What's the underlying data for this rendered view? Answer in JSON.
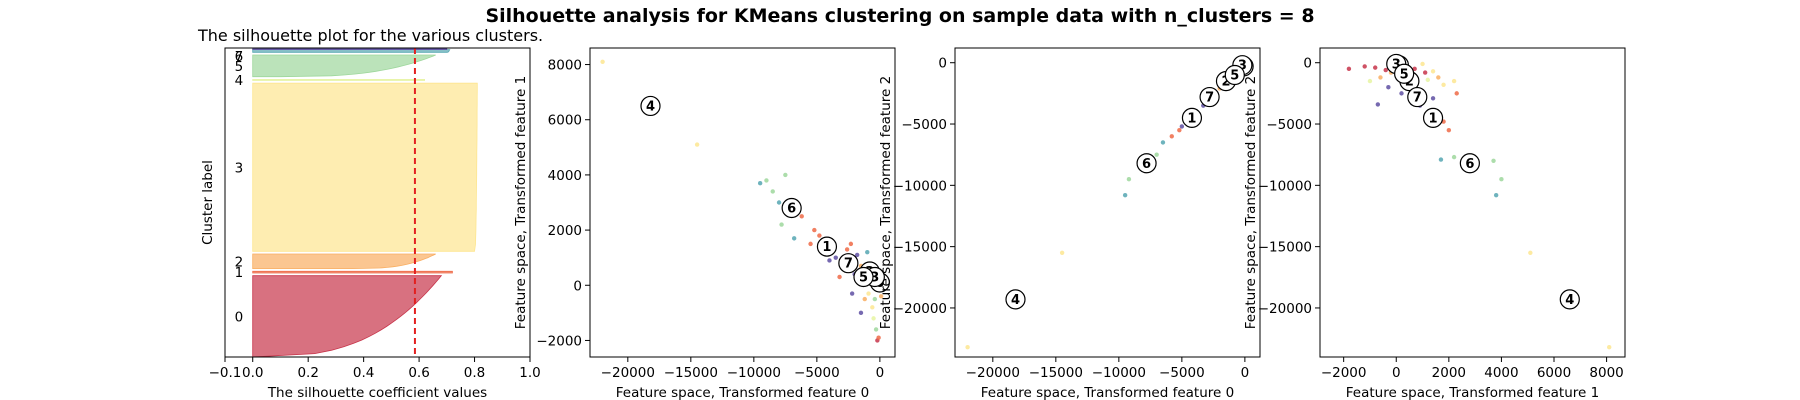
{
  "figure": {
    "suptitle": "Silhouette analysis for KMeans clustering on sample data with n_clusters = 8"
  },
  "colors": {
    "c0": "#c7344a",
    "c1": "#ee6a47",
    "c2": "#f9ae62",
    "c3": "#fde690",
    "c4": "#e6f4a2",
    "c5": "#9ed79c",
    "c6": "#55a6b1",
    "c7": "#5e4fa2",
    "avg_line": "#e32020"
  },
  "chart_data": [
    {
      "type": "area",
      "name": "silhouette",
      "title": "The silhouette plot for the various clusters.",
      "xlabel": "The silhouette coefficient values",
      "ylabel": "Cluster label",
      "xlim": [
        -0.1,
        1.0
      ],
      "ylim": [
        0,
        570
      ],
      "x_ticks": [
        "−0.1",
        "0.0",
        "0.2",
        "0.4",
        "0.6",
        "0.8",
        "1.0"
      ],
      "x_tick_values": [
        -0.1,
        0.0,
        0.2,
        0.4,
        0.6,
        0.8,
        1.0
      ],
      "average_silhouette": 0.585,
      "clusters": [
        {
          "label": "0",
          "y_lo": 0,
          "y_hi": 150,
          "max": 0.68,
          "min": 0.0
        },
        {
          "label": "1",
          "y_lo": 155,
          "y_hi": 158,
          "max": 0.72,
          "min": 0.72
        },
        {
          "label": "2",
          "y_lo": 163,
          "y_hi": 190,
          "max": 0.66,
          "min": 0.36
        },
        {
          "label": "3",
          "y_lo": 195,
          "y_hi": 505,
          "max": 0.81,
          "min": 0.8
        },
        {
          "label": "4",
          "y_lo": 510,
          "y_hi": 512,
          "max": 0.62,
          "min": 0.62
        },
        {
          "label": "5",
          "y_lo": 517,
          "y_hi": 557,
          "max": 0.66,
          "min": 0.1
        },
        {
          "label": "6",
          "y_lo": 562,
          "y_hi": 567,
          "max": 0.71,
          "min": 0.7
        },
        {
          "label": "7",
          "y_lo": 567,
          "y_hi": 569,
          "max": 0.7,
          "min": 0.7
        }
      ]
    },
    {
      "type": "scatter",
      "name": "feature0-vs-feature1",
      "xlabel": "Feature space, Transformed feature 0",
      "ylabel": "Feature space, Transformed feature 1",
      "xlim": [
        -23000,
        1200
      ],
      "ylim": [
        -2600,
        8600
      ],
      "x_ticks": [
        "−20000",
        "−15000",
        "−10000",
        "−5000",
        "0"
      ],
      "x_tick_values": [
        -20000,
        -15000,
        -10000,
        -5000,
        0
      ],
      "y_ticks": [
        "−2000",
        "0",
        "2000",
        "4000",
        "6000",
        "8000"
      ],
      "y_tick_values": [
        -2000,
        0,
        2000,
        4000,
        6000,
        8000
      ],
      "centers": [
        {
          "label": "0",
          "x": 0,
          "y": 100
        },
        {
          "label": "1",
          "x": -4200,
          "y": 1400
        },
        {
          "label": "2",
          "x": -800,
          "y": 500
        },
        {
          "label": "3",
          "x": -400,
          "y": 300
        },
        {
          "label": "4",
          "x": -18200,
          "y": 6500
        },
        {
          "label": "5",
          "x": -1300,
          "y": 300
        },
        {
          "label": "6",
          "x": -7000,
          "y": 2800
        },
        {
          "label": "7",
          "x": -2500,
          "y": 800
        }
      ],
      "points": [
        {
          "x": -22000,
          "y": 8100,
          "c": 3
        },
        {
          "x": -14500,
          "y": 5100,
          "c": 3
        },
        {
          "x": -9000,
          "y": 3800,
          "c": 5
        },
        {
          "x": -9500,
          "y": 3700,
          "c": 6
        },
        {
          "x": -7500,
          "y": 4000,
          "c": 5
        },
        {
          "x": -8500,
          "y": 3400,
          "c": 5
        },
        {
          "x": -8000,
          "y": 3000,
          "c": 6
        },
        {
          "x": -7800,
          "y": 2200,
          "c": 5
        },
        {
          "x": -6200,
          "y": 2500,
          "c": 1
        },
        {
          "x": -6800,
          "y": 1700,
          "c": 6
        },
        {
          "x": -5200,
          "y": 2000,
          "c": 1
        },
        {
          "x": -4800,
          "y": 1800,
          "c": 1
        },
        {
          "x": -4400,
          "y": 1200,
          "c": 1
        },
        {
          "x": -5500,
          "y": 1500,
          "c": 1
        },
        {
          "x": -3800,
          "y": 1600,
          "c": 7
        },
        {
          "x": -3500,
          "y": 1000,
          "c": 7
        },
        {
          "x": -3000,
          "y": 900,
          "c": 7
        },
        {
          "x": -2800,
          "y": 600,
          "c": 7
        },
        {
          "x": -2000,
          "y": 400,
          "c": 7
        },
        {
          "x": -1800,
          "y": 1100,
          "c": 7
        },
        {
          "x": -1500,
          "y": 700,
          "c": 2
        },
        {
          "x": -1100,
          "y": 200,
          "c": 2
        },
        {
          "x": -900,
          "y": -300,
          "c": 3
        },
        {
          "x": -600,
          "y": -800,
          "c": 3
        },
        {
          "x": -500,
          "y": -1200,
          "c": 4
        },
        {
          "x": -300,
          "y": -1600,
          "c": 5
        },
        {
          "x": -200,
          "y": -2000,
          "c": 0
        },
        {
          "x": -100,
          "y": -1900,
          "c": 1
        },
        {
          "x": -1200,
          "y": -500,
          "c": 2
        },
        {
          "x": -1500,
          "y": -1000,
          "c": 7
        },
        {
          "x": -2200,
          "y": -300,
          "c": 7
        },
        {
          "x": -3200,
          "y": 300,
          "c": 1
        },
        {
          "x": -700,
          "y": 600,
          "c": 3
        },
        {
          "x": -200,
          "y": 300,
          "c": 4
        },
        {
          "x": 100,
          "y": -400,
          "c": 2
        },
        {
          "x": -400,
          "y": -500,
          "c": 5
        },
        {
          "x": -2600,
          "y": 1300,
          "c": 1
        },
        {
          "x": -2300,
          "y": 1500,
          "c": 1
        },
        {
          "x": -1000,
          "y": 1200,
          "c": 6
        },
        {
          "x": -4000,
          "y": 900,
          "c": 7
        }
      ]
    },
    {
      "type": "scatter",
      "name": "feature0-vs-feature2",
      "xlabel": "Feature space, Transformed feature 0",
      "ylabel": "Feature space, Transformed feature 2",
      "xlim": [
        -23000,
        1200
      ],
      "ylim": [
        -24000,
        1200
      ],
      "x_ticks": [
        "−20000",
        "−15000",
        "−10000",
        "−5000",
        "0"
      ],
      "x_tick_values": [
        -20000,
        -15000,
        -10000,
        -5000,
        0
      ],
      "y_ticks": [
        "−20000",
        "−15000",
        "−10000",
        "−5000",
        "0"
      ],
      "y_tick_values": [
        -20000,
        -15000,
        -10000,
        -5000,
        0
      ],
      "centers": [
        {
          "label": "0",
          "x": -100,
          "y": -300
        },
        {
          "label": "1",
          "x": -4200,
          "y": -4500
        },
        {
          "label": "2",
          "x": -1500,
          "y": -1500
        },
        {
          "label": "3",
          "x": -200,
          "y": -200
        },
        {
          "label": "4",
          "x": -18200,
          "y": -19300
        },
        {
          "label": "5",
          "x": -800,
          "y": -1000
        },
        {
          "label": "6",
          "x": -7800,
          "y": -8200
        },
        {
          "label": "7",
          "x": -2800,
          "y": -2800
        }
      ],
      "points": [
        {
          "x": -22000,
          "y": -23200,
          "c": 3
        },
        {
          "x": -14500,
          "y": -15500,
          "c": 3
        },
        {
          "x": -9500,
          "y": -10800,
          "c": 6
        },
        {
          "x": -9200,
          "y": -9500,
          "c": 5
        },
        {
          "x": -7000,
          "y": -7500,
          "c": 5
        },
        {
          "x": -6500,
          "y": -6500,
          "c": 6
        },
        {
          "x": -5800,
          "y": -6000,
          "c": 1
        },
        {
          "x": -5200,
          "y": -5500,
          "c": 1
        },
        {
          "x": -4600,
          "y": -4800,
          "c": 1
        },
        {
          "x": -3900,
          "y": -4100,
          "c": 1
        },
        {
          "x": -3300,
          "y": -3500,
          "c": 7
        },
        {
          "x": -2600,
          "y": -2600,
          "c": 7
        },
        {
          "x": -2000,
          "y": -2100,
          "c": 2
        },
        {
          "x": -1600,
          "y": -1700,
          "c": 2
        },
        {
          "x": -1200,
          "y": -1300,
          "c": 3
        },
        {
          "x": -700,
          "y": -700,
          "c": 4
        },
        {
          "x": -400,
          "y": -500,
          "c": 3
        },
        {
          "x": 200,
          "y": 100,
          "c": 0
        },
        {
          "x": -5000,
          "y": -5200,
          "c": 7
        },
        {
          "x": -4300,
          "y": -4300,
          "c": 1
        }
      ]
    },
    {
      "type": "scatter",
      "name": "feature1-vs-feature2",
      "xlabel": "Feature space, Transformed feature 1",
      "ylabel": "Feature space, Transformed feature 2",
      "xlim": [
        -2900,
        8700
      ],
      "ylim": [
        -24000,
        1200
      ],
      "x_ticks": [
        "−2000",
        "0",
        "2000",
        "4000",
        "6000",
        "8000"
      ],
      "x_tick_values": [
        -2000,
        0,
        2000,
        4000,
        6000,
        8000
      ],
      "y_ticks": [
        "−20000",
        "−15000",
        "−10000",
        "−5000",
        "0"
      ],
      "y_tick_values": [
        -20000,
        -15000,
        -10000,
        -5000,
        0
      ],
      "centers": [
        {
          "label": "0",
          "x": 100,
          "y": -200
        },
        {
          "label": "1",
          "x": 1400,
          "y": -4500
        },
        {
          "label": "2",
          "x": 500,
          "y": -1500
        },
        {
          "label": "3",
          "x": 0,
          "y": -100
        },
        {
          "label": "4",
          "x": 6600,
          "y": -19300
        },
        {
          "label": "5",
          "x": 300,
          "y": -900
        },
        {
          "label": "6",
          "x": 2800,
          "y": -8200
        },
        {
          "label": "7",
          "x": 800,
          "y": -2800
        }
      ],
      "points": [
        {
          "x": 8100,
          "y": -23200,
          "c": 3
        },
        {
          "x": 5100,
          "y": -15500,
          "c": 3
        },
        {
          "x": 3800,
          "y": -10800,
          "c": 6
        },
        {
          "x": 4000,
          "y": -9500,
          "c": 5
        },
        {
          "x": 3700,
          "y": -8000,
          "c": 5
        },
        {
          "x": 3000,
          "y": -7800,
          "c": 6
        },
        {
          "x": 2200,
          "y": -7700,
          "c": 5
        },
        {
          "x": 1700,
          "y": -7900,
          "c": 6
        },
        {
          "x": 2000,
          "y": -5500,
          "c": 1
        },
        {
          "x": 1800,
          "y": -4800,
          "c": 1
        },
        {
          "x": 1200,
          "y": -4300,
          "c": 1
        },
        {
          "x": 900,
          "y": -3500,
          "c": 7
        },
        {
          "x": -1200,
          "y": -300,
          "c": 0
        },
        {
          "x": -800,
          "y": -400,
          "c": 0
        },
        {
          "x": -400,
          "y": -600,
          "c": 0
        },
        {
          "x": 200,
          "y": -300,
          "c": 0
        },
        {
          "x": 700,
          "y": -500,
          "c": 0
        },
        {
          "x": 1100,
          "y": -800,
          "c": 0
        },
        {
          "x": -1800,
          "y": -500,
          "c": 0
        },
        {
          "x": 1600,
          "y": -1200,
          "c": 2
        },
        {
          "x": 1400,
          "y": -700,
          "c": 3
        },
        {
          "x": 1000,
          "y": -100,
          "c": 3
        },
        {
          "x": 1800,
          "y": -1800,
          "c": 3
        },
        {
          "x": -600,
          "y": -1200,
          "c": 2
        },
        {
          "x": -300,
          "y": -2000,
          "c": 7
        },
        {
          "x": 200,
          "y": -2500,
          "c": 7
        },
        {
          "x": -700,
          "y": -3400,
          "c": 7
        },
        {
          "x": 400,
          "y": -1800,
          "c": 5
        },
        {
          "x": 900,
          "y": -2200,
          "c": 5
        },
        {
          "x": -1000,
          "y": -1500,
          "c": 4
        },
        {
          "x": 2200,
          "y": -1500,
          "c": 3
        },
        {
          "x": 2300,
          "y": -2500,
          "c": 1
        },
        {
          "x": 1400,
          "y": -2900,
          "c": 7
        },
        {
          "x": 600,
          "y": -3300,
          "c": 7
        },
        {
          "x": -200,
          "y": -800,
          "c": 2
        },
        {
          "x": 1200,
          "y": -1400,
          "c": 4
        }
      ]
    }
  ]
}
